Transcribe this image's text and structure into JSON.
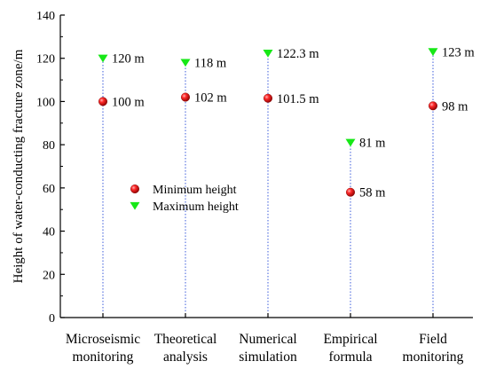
{
  "chart_data": {
    "type": "scatter",
    "title": "",
    "xlabel": "",
    "ylabel": "Height of water-conducting fracture zone/m",
    "ylim": [
      0,
      140
    ],
    "yticks": [
      0,
      20,
      40,
      60,
      80,
      100,
      120,
      140
    ],
    "grid": false,
    "legend_position": "center-left",
    "categories": [
      [
        "Microseismic",
        "monitoring"
      ],
      [
        "Theoretical",
        "analysis"
      ],
      [
        "Numerical",
        "simulation"
      ],
      [
        "Empirical",
        "formula"
      ],
      [
        "Field",
        "monitoring"
      ]
    ],
    "series": [
      {
        "name": "Minimum height",
        "marker": "sphere",
        "color": "#e3001b",
        "values": [
          100,
          102,
          101.5,
          58,
          98
        ],
        "labels": [
          "100 m",
          "102 m",
          "101.5 m",
          "58 m",
          "98 m"
        ]
      },
      {
        "name": "Maximum height",
        "marker": "triangle-down",
        "color": "#17e817",
        "values": [
          120,
          118,
          122.3,
          81,
          123
        ],
        "labels": [
          "120 m",
          "118 m",
          "122.3 m",
          "81 m",
          "123 m"
        ]
      }
    ],
    "dropline_color": "#3b5bdb"
  }
}
